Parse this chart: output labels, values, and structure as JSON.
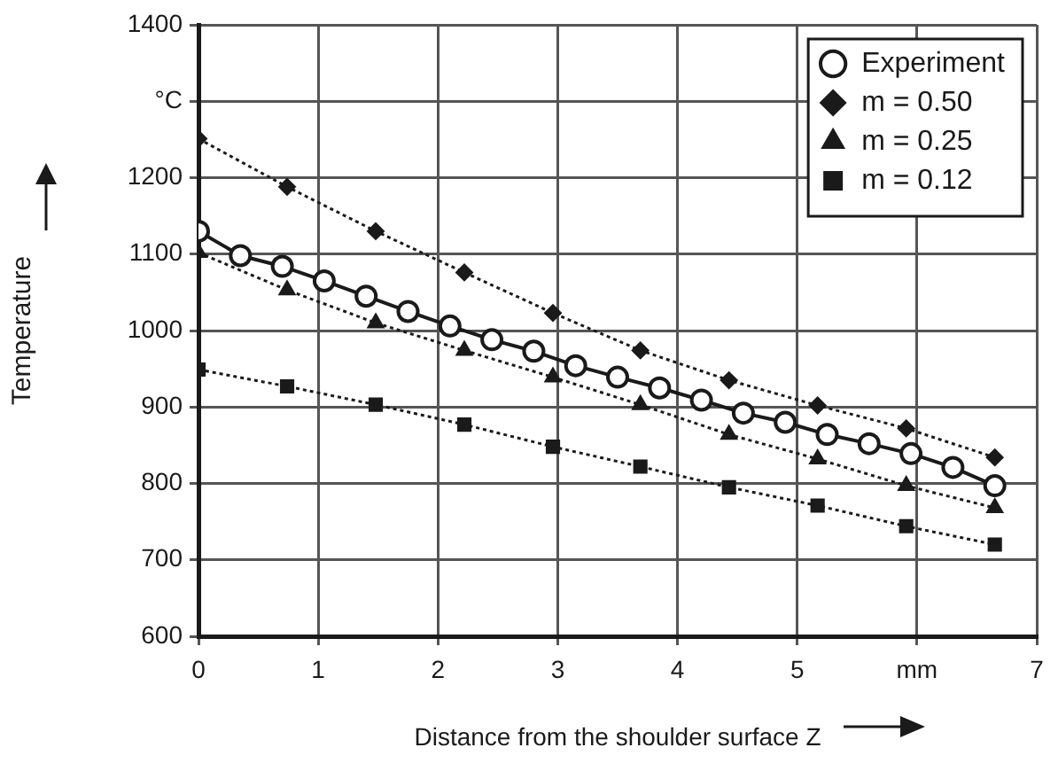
{
  "chart_data": {
    "type": "line",
    "xlabel": "Distance from the shoulder surface Z",
    "ylabel": "Temperature",
    "xlim": [
      0,
      7
    ],
    "xticks": [
      0,
      1,
      2,
      3,
      4,
      5,
      {
        "value": 6,
        "label": "mm"
      },
      7
    ],
    "ylim": [
      600,
      1400
    ],
    "yticks": [
      600,
      700,
      800,
      900,
      1000,
      1100,
      1200,
      {
        "value": 1300,
        "label": "°C"
      },
      1400
    ],
    "grid": true,
    "legend": "top right",
    "series": [
      {
        "name": "Experiment",
        "color": "#1a1a1a",
        "marker": "circle",
        "line_style": "solid",
        "x": [
          0,
          0.35,
          0.7,
          1.05,
          1.4,
          1.75,
          2.1,
          2.45,
          2.8,
          3.15,
          3.5,
          3.85,
          4.2,
          4.55,
          4.9,
          5.25,
          5.6,
          5.95,
          6.3,
          6.65
        ],
        "values": [
          1130,
          1098,
          1084,
          1065,
          1045,
          1025,
          1006,
          988,
          973,
          954,
          939,
          925,
          909,
          892,
          880,
          864,
          852,
          839,
          821,
          797
        ]
      },
      {
        "name": "m = 0.50",
        "color": "#1a1a1a",
        "marker": "diamond",
        "line_style": "dotted",
        "x": [
          0,
          0.74,
          1.48,
          2.22,
          2.96,
          3.69,
          4.43,
          5.17,
          5.91,
          6.65
        ],
        "values": [
          1251,
          1188,
          1130,
          1076,
          1023,
          974,
          935,
          902,
          872,
          834
        ]
      },
      {
        "name": "m = 0.25",
        "color": "#1a1a1a",
        "marker": "triangle",
        "line_style": "dotted",
        "x": [
          0,
          0.74,
          1.48,
          2.22,
          2.96,
          3.69,
          4.43,
          5.17,
          5.91,
          6.65
        ],
        "values": [
          1102,
          1053,
          1010,
          974,
          939,
          903,
          864,
          832,
          797,
          768
        ]
      },
      {
        "name": "m = 0.12",
        "color": "#1a1a1a",
        "marker": "square",
        "line_style": "dotted",
        "x": [
          0,
          0.74,
          1.48,
          2.22,
          2.96,
          3.69,
          4.43,
          5.17,
          5.91,
          6.65
        ],
        "values": [
          949,
          927,
          903,
          877,
          848,
          822,
          795,
          771,
          744,
          720
        ]
      }
    ]
  }
}
